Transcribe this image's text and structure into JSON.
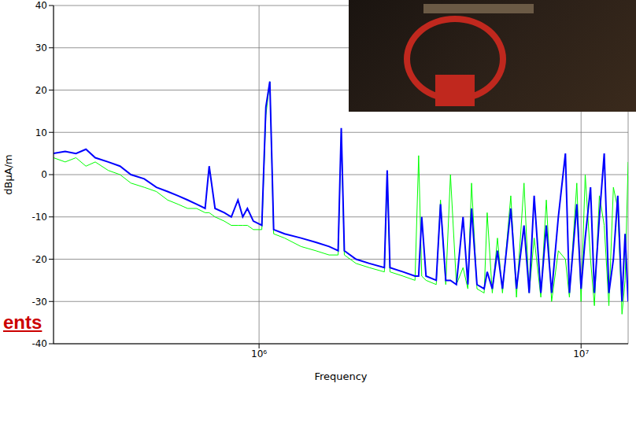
{
  "chart_data": {
    "type": "line",
    "log": "x",
    "grid": true,
    "x_label": "Frequency",
    "y_label": "dBµA/m",
    "annotation": "ents",
    "xlim": [
      230000,
      14000000
    ],
    "xticks": [
      {
        "value": 1000000,
        "label": "10⁶"
      },
      {
        "value": 10000000,
        "label": "10⁷"
      }
    ],
    "ylim": [
      -40,
      40
    ],
    "yticks": [
      -40,
      -30,
      -20,
      -10,
      0,
      10,
      20,
      30,
      40
    ],
    "x": [
      230000,
      250000,
      270000,
      290000,
      310000,
      340000,
      370000,
      400000,
      440000,
      480000,
      520000,
      560000,
      600000,
      640000,
      680000,
      700000,
      730000,
      780000,
      820000,
      860000,
      890000,
      920000,
      960000,
      1020000,
      1050000,
      1080000,
      1110000,
      1200000,
      1350000,
      1500000,
      1650000,
      1760000,
      1800000,
      1840000,
      2000000,
      2200000,
      2450000,
      2500000,
      2550000,
      2800000,
      3050000,
      3130000,
      3200000,
      3300000,
      3550000,
      3660000,
      3800000,
      3930000,
      4100000,
      4300000,
      4450000,
      4570000,
      4750000,
      5000000,
      5110000,
      5300000,
      5500000,
      5700000,
      6050000,
      6300000,
      6650000,
      6900000,
      7150000,
      7500000,
      7800000,
      8100000,
      8500000,
      8940000,
      9200000,
      9700000,
      10000000,
      10300000,
      10700000,
      11000000,
      11400000,
      11800000,
      12200000,
      12600000,
      13000000,
      13400000,
      13700000,
      14000000
    ],
    "series": [
      {
        "color": "#00ff00",
        "values": [
          4,
          3,
          4,
          2,
          3,
          1,
          0,
          -2,
          -3,
          -4,
          -6,
          -7,
          -8,
          -8,
          -9,
          -9,
          -10,
          -11,
          -12,
          -12,
          -12,
          -12,
          -13,
          -13,
          14,
          22,
          -14,
          -15,
          -17,
          -18,
          -19,
          -19,
          10,
          -19,
          -21,
          -22,
          -23,
          0,
          -23,
          -24,
          -25,
          4.5,
          -24,
          -25,
          -26,
          -6,
          -26,
          0,
          -26,
          -22,
          -27,
          -2,
          -27,
          -28,
          -9,
          -28,
          -15,
          -28,
          -5,
          -29,
          -2,
          -28,
          -15,
          -29,
          -6,
          -30,
          -18,
          -20,
          -29,
          -2,
          -30,
          0,
          -20,
          -31,
          -5,
          -12,
          -31,
          -3,
          -8,
          -33,
          -25,
          3
        ]
      },
      {
        "color": "#0000ff",
        "values": [
          5,
          5.5,
          5,
          6,
          4,
          3,
          2,
          0,
          -1,
          -3,
          -4,
          -5,
          -6,
          -7,
          -8,
          2,
          -8,
          -9,
          -10,
          -6,
          -10,
          -8,
          -11,
          -12,
          16,
          22,
          -13,
          -14,
          -15,
          -16,
          -17,
          -18,
          11,
          -18,
          -20,
          -21,
          -22,
          1,
          -22,
          -23,
          -24,
          -24,
          -10,
          -24,
          -25,
          -7,
          -25,
          -25,
          -26,
          -10,
          -26,
          -8,
          -26,
          -27,
          -23,
          -27,
          -18,
          -27,
          -8,
          -27,
          -12,
          -28,
          -5,
          -28,
          -12,
          -28,
          -10,
          5,
          -28,
          -7,
          -27,
          -15,
          -3,
          -28,
          -10,
          5,
          -28,
          -20,
          -5,
          -30,
          -14,
          -30
        ]
      }
    ]
  }
}
